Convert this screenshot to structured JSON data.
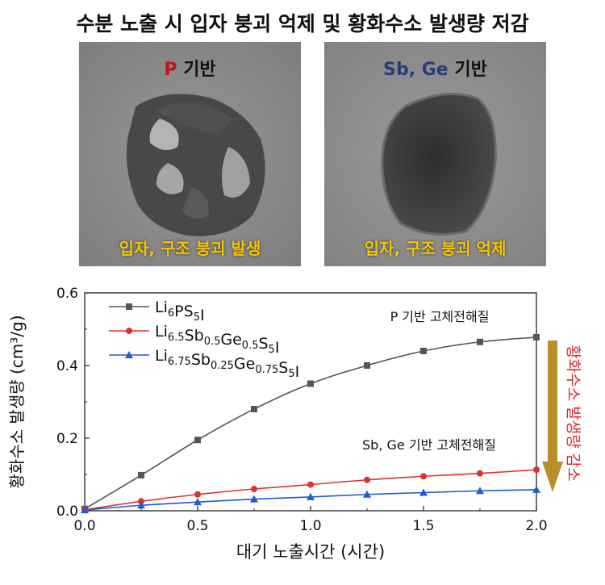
{
  "header": {
    "title": "수분 노출 시 입자 붕괴 억제 및 황화수소 발생량 저감"
  },
  "images": [
    {
      "label_keyword": "P",
      "label_suffix": " 기반",
      "caption": "입자, 구조 붕괴 발생",
      "keyword_color": "#c0141c"
    },
    {
      "label_keyword": "Sb, Ge",
      "label_suffix": " 기반",
      "caption": "입자, 구조 붕괴 억제",
      "keyword_color": "#2a3d7a"
    }
  ],
  "side_annotation": {
    "text": "황화수소 발생량 감소",
    "text_color": "#e0242b",
    "arrow_color": "#b8902a"
  },
  "chart_data": {
    "type": "line",
    "xlabel": "대기 노출시간 (시간)",
    "ylabel": "황화수소 발생량 (cm³/g)",
    "xlim": [
      0,
      2.0
    ],
    "ylim": [
      0,
      0.6
    ],
    "xticks": [
      "0.0",
      "0.5",
      "1.0",
      "1.5",
      "2.0"
    ],
    "yticks": [
      "0.0",
      "0.2",
      "0.4",
      "0.6"
    ],
    "grid": false,
    "legend_position": "top-left",
    "series": [
      {
        "name": "Li6PS5I",
        "marker": "square",
        "color": "#555555",
        "x": [
          0,
          0.25,
          0.5,
          0.75,
          1.0,
          1.25,
          1.5,
          1.75,
          2.0
        ],
        "y": [
          0.005,
          0.098,
          0.195,
          0.28,
          0.35,
          0.4,
          0.44,
          0.465,
          0.478
        ]
      },
      {
        "name": "Li6.5Sb0.5Ge0.5S5I",
        "marker": "circle",
        "color": "#e03030",
        "x": [
          0,
          0.25,
          0.5,
          0.75,
          1.0,
          1.25,
          1.5,
          1.75,
          2.0
        ],
        "y": [
          0.003,
          0.026,
          0.045,
          0.06,
          0.072,
          0.085,
          0.095,
          0.103,
          0.113
        ]
      },
      {
        "name": "Li6.75Sb0.25Ge0.75S5I",
        "marker": "triangle",
        "color": "#1e5bd6",
        "x": [
          0,
          0.25,
          0.5,
          0.75,
          1.0,
          1.25,
          1.5,
          1.75,
          2.0
        ],
        "y": [
          0.002,
          0.015,
          0.024,
          0.032,
          0.038,
          0.045,
          0.05,
          0.055,
          0.058
        ]
      }
    ],
    "annotations": [
      "P 기반 고체전해질",
      "Sb, Ge 기반 고체전해질"
    ]
  }
}
